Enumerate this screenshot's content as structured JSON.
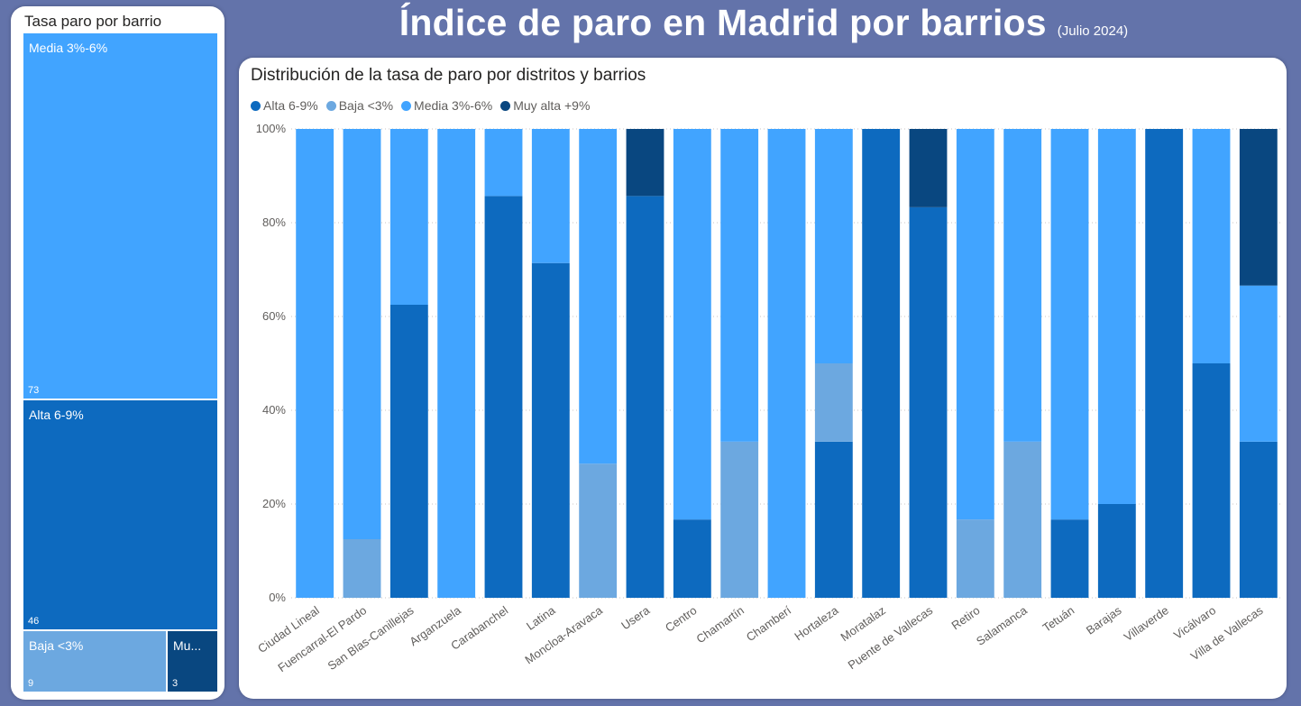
{
  "header": {
    "title": "Índice de paro en Madrid por barrios",
    "subtitle": "(Julio 2024)"
  },
  "treemap": {
    "title": "Tasa paro por barrio",
    "items": [
      {
        "label": "Media 3%-6%",
        "value": "73",
        "color": "#41a4ff"
      },
      {
        "label": "Alta 6-9%",
        "value": "46",
        "color": "#0d6abf"
      },
      {
        "label": "Baja <3%",
        "value": "9",
        "color": "#6ca8e0"
      },
      {
        "label": "Mu...",
        "value": "3",
        "color": "#094780"
      }
    ]
  },
  "chart": {
    "title": "Distribución de la tasa de paro por distritos y barrios",
    "legend": [
      {
        "label": "Alta 6-9%",
        "color": "#0d6abf"
      },
      {
        "label": "Baja <3%",
        "color": "#6ca8e0"
      },
      {
        "label": "Media 3%-6%",
        "color": "#41a4ff"
      },
      {
        "label": "Muy alta +9%",
        "color": "#094780"
      }
    ]
  },
  "chart_data": {
    "type": "bar",
    "stacked": "100%",
    "y_tick_labels": [
      "0%",
      "20%",
      "40%",
      "60%",
      "80%",
      "100%"
    ],
    "ylim": [
      0,
      100
    ],
    "grid": true,
    "legend_position": "top-left",
    "categories": [
      "Ciudad Lineal",
      "Fuencarral-El Pardo",
      "San Blas-Canillejas",
      "Arganzuela",
      "Carabanchel",
      "Latina",
      "Moncloa-Aravaca",
      "Usera",
      "Centro",
      "Chamartín",
      "Chamberí",
      "Hortaleza",
      "Moratalaz",
      "Puente de Vallecas",
      "Retiro",
      "Salamanca",
      "Tetuán",
      "Barajas",
      "Villaverde",
      "Vicálvaro",
      "Villa de Vallecas"
    ],
    "series": [
      {
        "name": "Alta 6-9%",
        "color": "#0d6abf",
        "values": [
          0,
          0,
          62.5,
          0,
          85.7,
          71.4,
          0,
          85.7,
          16.7,
          0,
          0,
          33.3,
          100,
          83.3,
          0,
          0,
          16.7,
          20,
          100,
          50,
          33.3
        ]
      },
      {
        "name": "Baja <3%",
        "color": "#6ca8e0",
        "values": [
          0,
          12.5,
          0,
          0,
          0,
          0,
          28.6,
          0,
          0,
          33.3,
          0,
          16.7,
          0,
          0,
          16.7,
          33.3,
          0,
          0,
          0,
          0,
          0
        ]
      },
      {
        "name": "Media 3%-6%",
        "color": "#41a4ff",
        "values": [
          100,
          87.5,
          37.5,
          100,
          14.3,
          28.6,
          71.4,
          0,
          83.3,
          66.7,
          100,
          50,
          0,
          0,
          83.3,
          66.7,
          83.3,
          80,
          0,
          50,
          33.3
        ]
      },
      {
        "name": "Muy alta +9%",
        "color": "#094780",
        "values": [
          0,
          0,
          0,
          0,
          0,
          0,
          0,
          14.3,
          0,
          0,
          0,
          0,
          0,
          16.7,
          0,
          0,
          0,
          0,
          0,
          0,
          33.4
        ]
      }
    ]
  }
}
